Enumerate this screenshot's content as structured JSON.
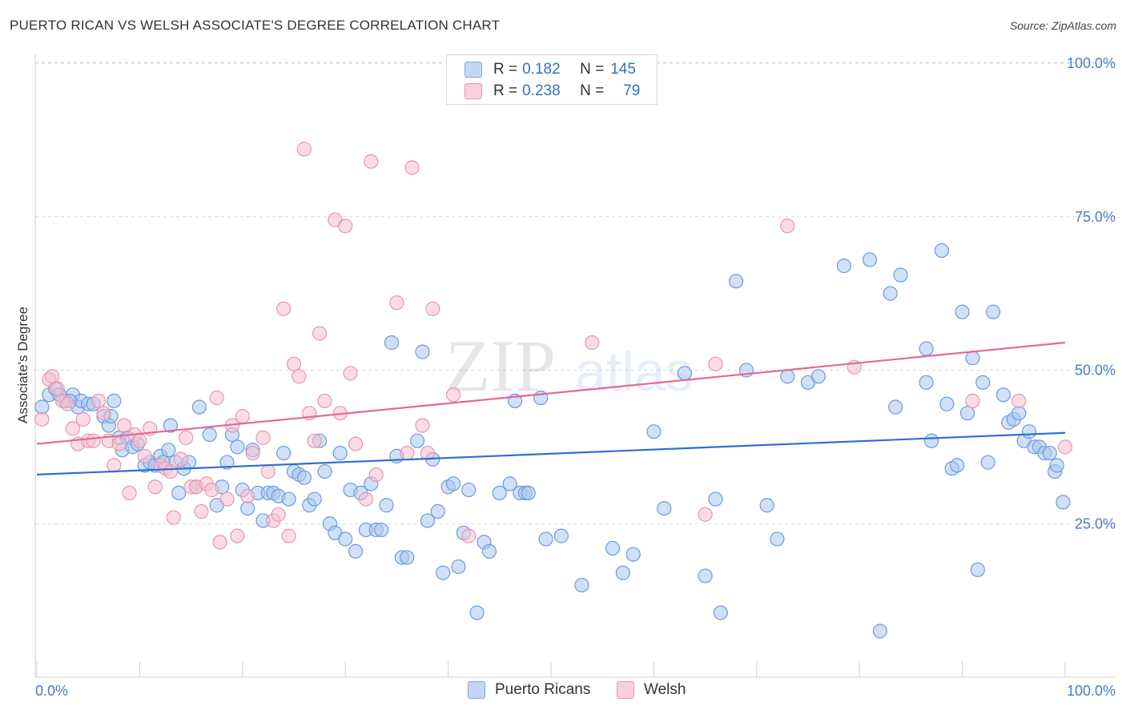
{
  "header": {
    "title": "PUERTO RICAN VS WELSH ASSOCIATE'S DEGREE CORRELATION CHART",
    "source": "Source: ZipAtlas.com"
  },
  "watermark": {
    "zip": "ZIP",
    "atlas": "atlas"
  },
  "legend": {
    "rows": [
      {
        "r_label": "R = ",
        "r_value": "0.182",
        "n_label": "N = ",
        "n_value": "145"
      },
      {
        "r_label": "R = ",
        "r_value": "0.238",
        "n_label": "N = ",
        "n_value": "79"
      }
    ]
  },
  "bottom_legend": {
    "series1": "Puerto Ricans",
    "series2": "Welsh"
  },
  "colors": {
    "blue_fill": "#a9c6f0",
    "blue_stroke": "#6d9bdc",
    "blue_line": "#2d6fd0",
    "pink_fill": "#f7bfd0",
    "pink_stroke": "#e995b0",
    "pink_line": "#e06a96",
    "grid": "#d9d9d9",
    "axis_text": "#4a7cc8"
  },
  "chart_data": {
    "type": "scatter",
    "title": "PUERTO RICAN VS WELSH ASSOCIATE'S DEGREE CORRELATION CHART",
    "xlabel": "",
    "ylabel": "Associate's Degree",
    "xlim": [
      0,
      100
    ],
    "ylim": [
      0,
      100
    ],
    "x_tick_labels": [
      "0.0%",
      "100.0%"
    ],
    "y_ticks": [
      25,
      50,
      75,
      100
    ],
    "y_tick_labels": [
      "25.0%",
      "50.0%",
      "75.0%",
      "100.0%"
    ],
    "series": [
      {
        "name": "Puerto Ricans",
        "R": 0.182,
        "N": 145,
        "trend": {
          "x": [
            0,
            100
          ],
          "y": [
            33.0,
            39.8
          ]
        },
        "points": [
          [
            0.5,
            44
          ],
          [
            1.2,
            46
          ],
          [
            1.8,
            47
          ],
          [
            2.2,
            46
          ],
          [
            2.8,
            45
          ],
          [
            3.5,
            46
          ],
          [
            4,
            44
          ],
          [
            4.3,
            45
          ],
          [
            5,
            44.5
          ],
          [
            5.5,
            44.5
          ],
          [
            6.5,
            42.5
          ],
          [
            7,
            41
          ],
          [
            7.5,
            45
          ],
          [
            8,
            39
          ],
          [
            8.3,
            37
          ],
          [
            8.8,
            39
          ],
          [
            9.3,
            37.5
          ],
          [
            9.8,
            38
          ],
          [
            10.5,
            34.5
          ],
          [
            11,
            35
          ],
          [
            11.5,
            34.5
          ],
          [
            12,
            36
          ],
          [
            12.3,
            35
          ],
          [
            12.8,
            37
          ],
          [
            13,
            41
          ],
          [
            13.5,
            35
          ],
          [
            13.8,
            30
          ],
          [
            14.3,
            34
          ],
          [
            14.8,
            35
          ],
          [
            15.5,
            31
          ],
          [
            15.8,
            44
          ],
          [
            16.8,
            39.5
          ],
          [
            17.5,
            28
          ],
          [
            18,
            31
          ],
          [
            18.5,
            35
          ],
          [
            19,
            39.5
          ],
          [
            19.5,
            37.5
          ],
          [
            20,
            30.5
          ],
          [
            20.5,
            27.5
          ],
          [
            21,
            37
          ],
          [
            21.5,
            30
          ],
          [
            22,
            25.5
          ],
          [
            22.5,
            30
          ],
          [
            23,
            30
          ],
          [
            23.5,
            29.5
          ],
          [
            24,
            36.5
          ],
          [
            24.5,
            29
          ],
          [
            25,
            33.5
          ],
          [
            25.5,
            33
          ],
          [
            26,
            32.5
          ],
          [
            26.5,
            28
          ],
          [
            27,
            29
          ],
          [
            27.5,
            38.5
          ],
          [
            28,
            33.5
          ],
          [
            28.5,
            25
          ],
          [
            29,
            23.5
          ],
          [
            29.5,
            36.5
          ],
          [
            30,
            22.5
          ],
          [
            30.5,
            30.5
          ],
          [
            31,
            20.5
          ],
          [
            31.5,
            30
          ],
          [
            32,
            24
          ],
          [
            32.5,
            31.5
          ],
          [
            33,
            24
          ],
          [
            33.5,
            24
          ],
          [
            34,
            28
          ],
          [
            34.5,
            54.5
          ],
          [
            35,
            36
          ],
          [
            35.5,
            19.5
          ],
          [
            36,
            19.5
          ],
          [
            37,
            38.5
          ],
          [
            37.5,
            53
          ],
          [
            38,
            25.5
          ],
          [
            38.5,
            35.5
          ],
          [
            39,
            27
          ],
          [
            39.5,
            17
          ],
          [
            40,
            31
          ],
          [
            40.5,
            31.5
          ],
          [
            41,
            18
          ],
          [
            41.5,
            23.5
          ],
          [
            42,
            30.5
          ],
          [
            42.8,
            10.5
          ],
          [
            43.5,
            22
          ],
          [
            44,
            20.5
          ],
          [
            45,
            30
          ],
          [
            46,
            31.5
          ],
          [
            46.5,
            45
          ],
          [
            47,
            30
          ],
          [
            47.5,
            30
          ],
          [
            47.8,
            30
          ],
          [
            49,
            45.5
          ],
          [
            49.5,
            22.5
          ],
          [
            51,
            23
          ],
          [
            53,
            15
          ],
          [
            56,
            21
          ],
          [
            57,
            17
          ],
          [
            58,
            20
          ],
          [
            60,
            40
          ],
          [
            61,
            27.5
          ],
          [
            63,
            49.5
          ],
          [
            65,
            16.5
          ],
          [
            66,
            29
          ],
          [
            66.5,
            10.5
          ],
          [
            68,
            64.5
          ],
          [
            69,
            50
          ],
          [
            71,
            28
          ],
          [
            72,
            22.5
          ],
          [
            73,
            49
          ],
          [
            75,
            48
          ],
          [
            76,
            49
          ],
          [
            78.5,
            67
          ],
          [
            81,
            68
          ],
          [
            82,
            7.5
          ],
          [
            83,
            62.5
          ],
          [
            83.5,
            44
          ],
          [
            84,
            65.5
          ],
          [
            86.5,
            53.5
          ],
          [
            86.5,
            48
          ],
          [
            87,
            38.5
          ],
          [
            88,
            69.5
          ],
          [
            88.5,
            44.5
          ],
          [
            89,
            34
          ],
          [
            89.5,
            34.5
          ],
          [
            90,
            59.5
          ],
          [
            90.5,
            43
          ],
          [
            91,
            52
          ],
          [
            91.5,
            17.5
          ],
          [
            92,
            48
          ],
          [
            92.5,
            35
          ],
          [
            93,
            59.5
          ],
          [
            94,
            46
          ],
          [
            94.5,
            41.5
          ],
          [
            95,
            42
          ],
          [
            95.5,
            43
          ],
          [
            96,
            38.5
          ],
          [
            96.5,
            40
          ],
          [
            97,
            37.5
          ],
          [
            97.5,
            37.5
          ],
          [
            98,
            36.5
          ],
          [
            98.5,
            36.5
          ],
          [
            99,
            33.5
          ],
          [
            99.2,
            34.5
          ],
          [
            99.8,
            28.5
          ],
          [
            3.2,
            45
          ],
          [
            7.2,
            42.5
          ]
        ]
      },
      {
        "name": "Welsh",
        "R": 0.238,
        "N": 79,
        "trend": {
          "x": [
            0,
            100
          ],
          "y": [
            38.0,
            54.5
          ]
        },
        "points": [
          [
            0.5,
            42
          ],
          [
            1.2,
            48.5
          ],
          [
            1.5,
            49
          ],
          [
            2,
            47
          ],
          [
            2.5,
            45
          ],
          [
            3,
            44.5
          ],
          [
            3.5,
            40.5
          ],
          [
            4,
            38
          ],
          [
            4.5,
            42
          ],
          [
            5,
            38.5
          ],
          [
            5.5,
            38.5
          ],
          [
            6,
            45
          ],
          [
            6.5,
            43
          ],
          [
            7,
            38.5
          ],
          [
            7.5,
            34.5
          ],
          [
            8,
            38
          ],
          [
            8.5,
            41
          ],
          [
            9,
            30
          ],
          [
            9.5,
            39.5
          ],
          [
            10,
            38.5
          ],
          [
            10.5,
            36
          ],
          [
            11,
            40.5
          ],
          [
            11.5,
            31
          ],
          [
            12,
            34.5
          ],
          [
            12.5,
            34
          ],
          [
            13,
            33.5
          ],
          [
            13.3,
            26
          ],
          [
            14,
            35.5
          ],
          [
            14.5,
            39
          ],
          [
            15,
            31
          ],
          [
            15.5,
            31
          ],
          [
            16,
            27
          ],
          [
            16.5,
            31.5
          ],
          [
            17,
            30.5
          ],
          [
            17.5,
            45.5
          ],
          [
            17.8,
            22
          ],
          [
            18.5,
            29
          ],
          [
            19,
            41
          ],
          [
            19.5,
            23
          ],
          [
            20,
            42.5
          ],
          [
            20.5,
            29.5
          ],
          [
            21,
            36.5
          ],
          [
            22,
            39
          ],
          [
            22.5,
            33.5
          ],
          [
            23,
            25.5
          ],
          [
            23.5,
            26.5
          ],
          [
            24,
            60
          ],
          [
            24.5,
            23
          ],
          [
            25,
            51
          ],
          [
            25.5,
            49
          ],
          [
            26,
            86
          ],
          [
            26.5,
            43
          ],
          [
            27,
            38.5
          ],
          [
            27.5,
            56
          ],
          [
            28,
            45
          ],
          [
            29,
            74.5
          ],
          [
            29.5,
            43
          ],
          [
            30,
            73.5
          ],
          [
            30.5,
            49.5
          ],
          [
            31,
            38
          ],
          [
            32,
            29
          ],
          [
            32.5,
            84
          ],
          [
            33,
            33
          ],
          [
            35,
            61
          ],
          [
            36,
            36.5
          ],
          [
            36.5,
            83
          ],
          [
            37.5,
            41
          ],
          [
            38,
            36.5
          ],
          [
            38.5,
            60
          ],
          [
            40.5,
            46
          ],
          [
            42,
            23
          ],
          [
            54,
            54.5
          ],
          [
            65,
            26.5
          ],
          [
            66,
            51
          ],
          [
            73,
            73.5
          ],
          [
            79.5,
            50.5
          ],
          [
            91,
            45
          ],
          [
            95.5,
            45
          ],
          [
            100,
            37.5
          ]
        ]
      }
    ]
  }
}
